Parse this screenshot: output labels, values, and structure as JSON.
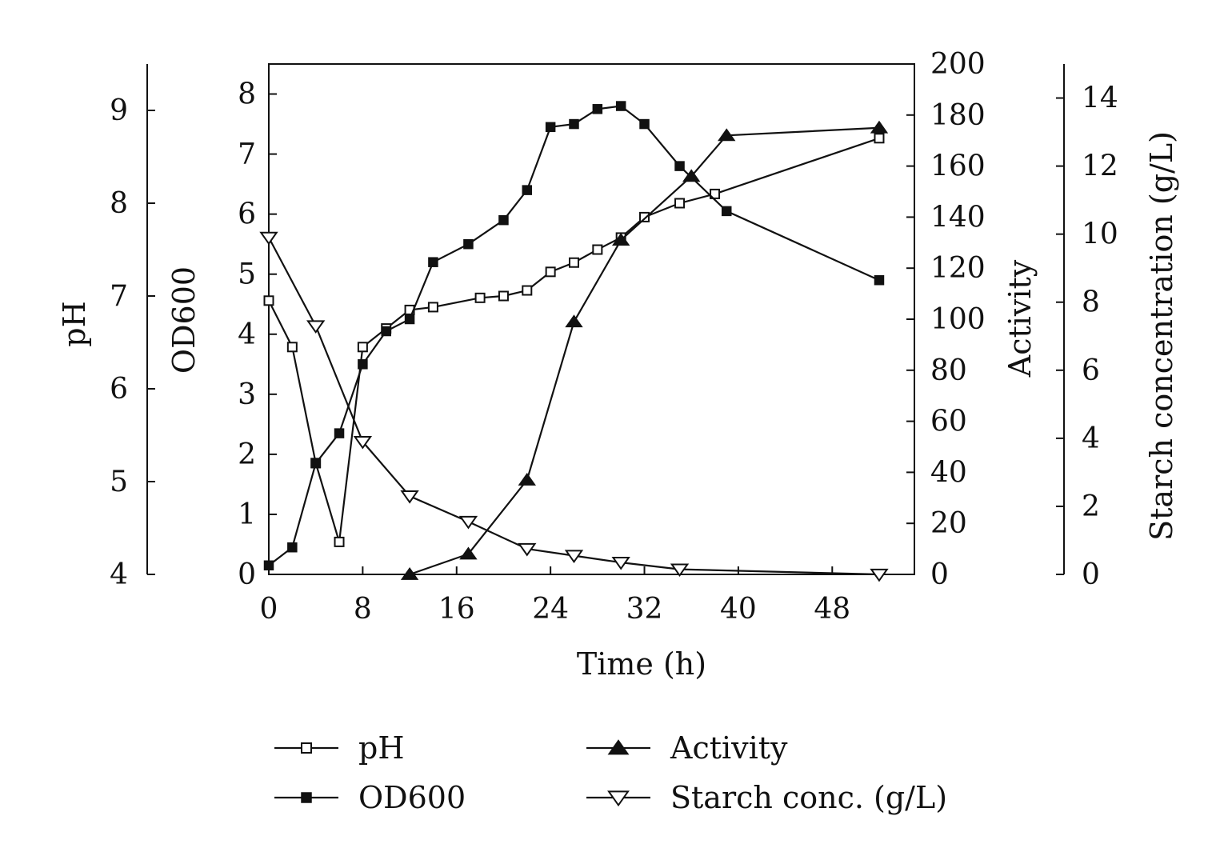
{
  "chart_data": {
    "type": "line",
    "xlabel": "Time (h)",
    "x_ticks": [
      0,
      8,
      16,
      24,
      32,
      40,
      48
    ],
    "xlim": [
      0,
      55
    ],
    "axes": {
      "ph": {
        "label": "pH",
        "ticks": [
          4,
          5,
          6,
          7,
          8,
          9
        ],
        "ylim": [
          4,
          9.5
        ]
      },
      "od600": {
        "label": "OD600",
        "ticks": [
          0,
          1,
          2,
          3,
          4,
          5,
          6,
          7,
          8
        ],
        "ylim": [
          0,
          8.5
        ]
      },
      "activity": {
        "label": "Activity",
        "ticks": [
          0,
          20,
          40,
          60,
          80,
          100,
          120,
          140,
          160,
          180,
          200
        ],
        "ylim": [
          0,
          200
        ]
      },
      "starch": {
        "label": "Starch concentration (g/L)",
        "ticks": [
          0,
          2,
          4,
          6,
          8,
          10,
          12,
          14
        ],
        "ylim": [
          0,
          15
        ]
      }
    },
    "series": [
      {
        "name": "pH",
        "axis": "ph",
        "marker": "square-open",
        "x": [
          0,
          2,
          4,
          6,
          8,
          10,
          12,
          14,
          18,
          20,
          22,
          24,
          26,
          28,
          30,
          32,
          35,
          38,
          52
        ],
        "y": [
          6.95,
          6.45,
          5.2,
          4.35,
          6.45,
          6.65,
          6.85,
          6.88,
          6.98,
          7.0,
          7.06,
          7.26,
          7.36,
          7.5,
          7.63,
          7.85,
          8.0,
          8.1,
          8.7
        ]
      },
      {
        "name": "OD600",
        "axis": "od600",
        "marker": "square-filled",
        "x": [
          0,
          2,
          4,
          6,
          8,
          10,
          12,
          14,
          17,
          20,
          22,
          24,
          26,
          28,
          30,
          32,
          35,
          39,
          52
        ],
        "y": [
          0.15,
          0.45,
          1.85,
          2.35,
          3.5,
          4.05,
          4.25,
          5.2,
          5.5,
          5.9,
          6.4,
          7.45,
          7.5,
          7.75,
          7.8,
          7.5,
          6.8,
          6.05,
          4.9
        ]
      },
      {
        "name": "Activity",
        "axis": "activity",
        "marker": "triangle-up-filled",
        "x": [
          12,
          17,
          22,
          26,
          30,
          36,
          39,
          52
        ],
        "y": [
          0,
          8,
          37,
          99,
          131,
          156,
          172,
          175
        ]
      },
      {
        "name": "Starch conc. (g/L)",
        "axis": "starch",
        "marker": "triangle-down-open",
        "x": [
          0,
          4,
          8,
          12,
          17,
          22,
          26,
          30,
          35,
          52
        ],
        "y": [
          9.9,
          7.3,
          3.9,
          2.3,
          1.55,
          0.75,
          0.55,
          0.35,
          0.15,
          0.0
        ]
      }
    ],
    "legend": {
      "position": "bottom",
      "entries": [
        {
          "label": "pH",
          "marker": "square-open"
        },
        {
          "label": "Activity",
          "marker": "triangle-up-filled"
        },
        {
          "label": "OD600",
          "marker": "square-filled"
        },
        {
          "label": "Starch conc. (g/L)",
          "marker": "triangle-down-open"
        }
      ]
    },
    "grid": false,
    "colors": {
      "ink": "#111111",
      "background": "#ffffff"
    }
  }
}
